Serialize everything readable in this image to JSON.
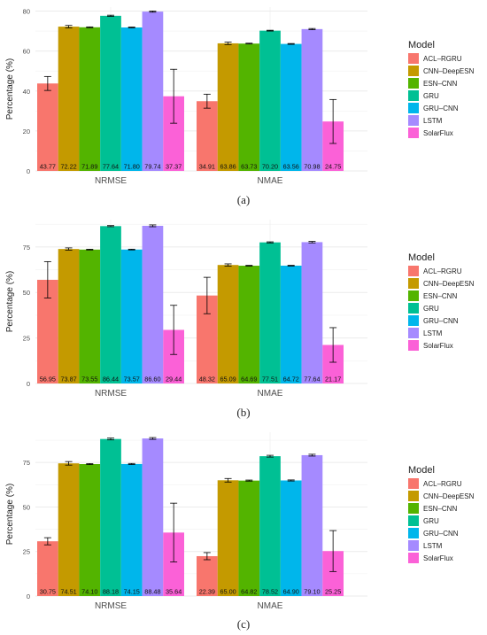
{
  "colors": {
    "ACL-RGRU": "#F8766D",
    "CNN-DeepESN": "#C49A00",
    "ESN-CNN": "#53B400",
    "GRU": "#00C094",
    "GRU-CNN": "#00B6EB",
    "LSTM": "#A58AFF",
    "SolarFlux": "#FB61D7",
    "grid": "#EBEBEB",
    "text": "#4D4D4D"
  },
  "chart_data": [
    {
      "type": "bar",
      "caption": "(a)",
      "ylabel": "Percentage (%)",
      "ylim": [
        0,
        82
      ],
      "yticks": [
        0,
        20,
        40,
        60,
        80
      ],
      "categories": [
        "NRMSE",
        "NMAE"
      ],
      "legend_title": "Model",
      "legend_position": "right",
      "series": [
        {
          "name": "ACL-RGRU",
          "values": [
            43.77,
            34.91
          ],
          "errors": [
            3.5,
            3.5
          ]
        },
        {
          "name": "CNN-DeepESN",
          "values": [
            72.22,
            63.86
          ],
          "errors": [
            0.6,
            0.6
          ]
        },
        {
          "name": "ESN-CNN",
          "values": [
            71.89,
            63.73
          ],
          "errors": [
            0.2,
            0.2
          ]
        },
        {
          "name": "GRU",
          "values": [
            77.64,
            70.2
          ],
          "errors": [
            0.3,
            0.2
          ]
        },
        {
          "name": "GRU-CNN",
          "values": [
            71.8,
            63.56
          ],
          "errors": [
            0.2,
            0.2
          ]
        },
        {
          "name": "LSTM",
          "values": [
            79.74,
            70.98
          ],
          "errors": [
            0.3,
            0.3
          ]
        },
        {
          "name": "SolarFlux",
          "values": [
            37.37,
            24.75
          ],
          "errors": [
            13.5,
            11
          ]
        }
      ]
    },
    {
      "type": "bar",
      "caption": "(b)",
      "ylabel": "Percentage (%)",
      "ylim": [
        0,
        90
      ],
      "yticks": [
        0,
        25,
        50,
        75
      ],
      "categories": [
        "NRMSE",
        "NMAE"
      ],
      "legend_title": "Model",
      "legend_position": "right",
      "series": [
        {
          "name": "ACL-RGRU",
          "values": [
            56.95,
            48.32
          ],
          "errors": [
            10,
            10
          ]
        },
        {
          "name": "CNN-DeepESN",
          "values": [
            73.87,
            65.09
          ],
          "errors": [
            0.6,
            0.6
          ]
        },
        {
          "name": "ESN-CNN",
          "values": [
            73.55,
            64.69
          ],
          "errors": [
            0.2,
            0.2
          ]
        },
        {
          "name": "GRU",
          "values": [
            86.44,
            77.51
          ],
          "errors": [
            0.3,
            0.3
          ]
        },
        {
          "name": "GRU-CNN",
          "values": [
            73.57,
            64.72
          ],
          "errors": [
            0.2,
            0.2
          ]
        },
        {
          "name": "LSTM",
          "values": [
            86.6,
            77.64
          ],
          "errors": [
            0.5,
            0.4
          ]
        },
        {
          "name": "SolarFlux",
          "values": [
            29.44,
            21.17
          ],
          "errors": [
            13.5,
            9.5
          ]
        }
      ]
    },
    {
      "type": "bar",
      "caption": "(c)",
      "ylabel": "Percentage (%)",
      "ylim": [
        0,
        92
      ],
      "yticks": [
        0,
        25,
        50,
        75
      ],
      "categories": [
        "NRMSE",
        "NMAE"
      ],
      "legend_title": "Model",
      "legend_position": "right",
      "series": [
        {
          "name": "ACL-RGRU",
          "values": [
            30.75,
            22.39
          ],
          "errors": [
            2,
            2
          ]
        },
        {
          "name": "CNN-DeepESN",
          "values": [
            74.51,
            65.0
          ],
          "errors": [
            1,
            1
          ]
        },
        {
          "name": "ESN-CNN",
          "values": [
            74.1,
            64.82
          ],
          "errors": [
            0.3,
            0.3
          ]
        },
        {
          "name": "GRU",
          "values": [
            88.18,
            78.52
          ],
          "errors": [
            0.5,
            0.5
          ]
        },
        {
          "name": "GRU-CNN",
          "values": [
            74.15,
            64.9
          ],
          "errors": [
            0.3,
            0.3
          ]
        },
        {
          "name": "LSTM",
          "values": [
            88.48,
            79.1
          ],
          "errors": [
            0.5,
            0.5
          ]
        },
        {
          "name": "SolarFlux",
          "values": [
            35.64,
            25.25
          ],
          "errors": [
            16.5,
            11.5
          ]
        }
      ]
    }
  ]
}
